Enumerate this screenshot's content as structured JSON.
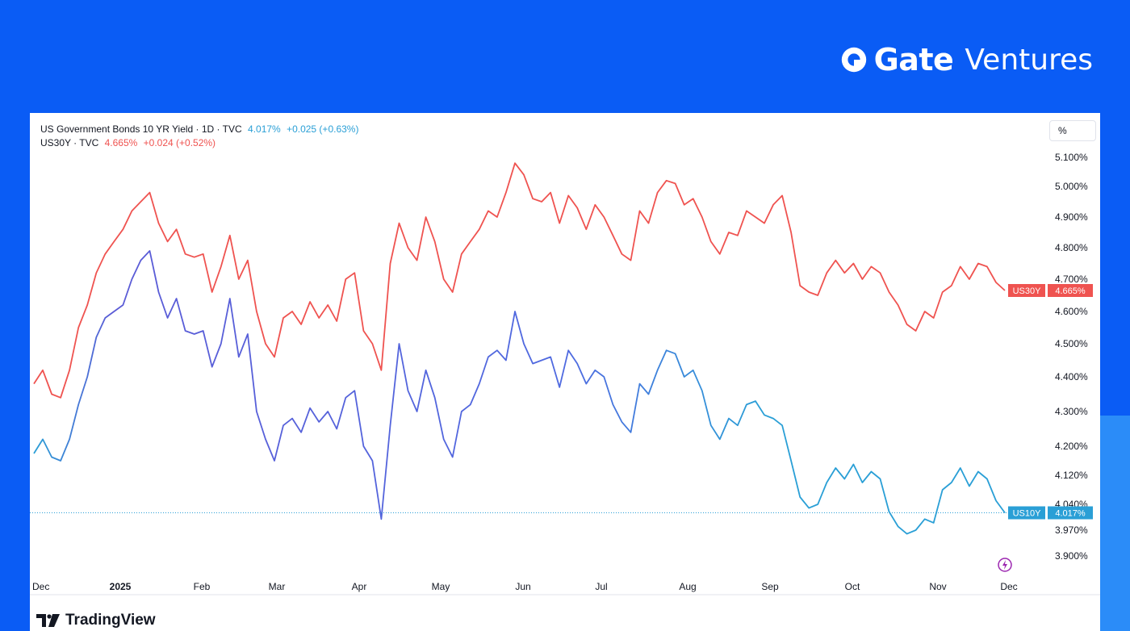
{
  "brand": {
    "name": "Gate",
    "sub": "Ventures",
    "logo_icon": "gate-logo-icon"
  },
  "legend": {
    "us10y_title": "US Government Bonds 10 YR Yield · 1D · TVC",
    "us10y_value": "4.017%",
    "us10y_change": "+0.025 (+0.63%)",
    "us30y_title": "US30Y · TVC",
    "us30y_value": "4.665%",
    "us30y_change": "+0.024 (+0.52%)"
  },
  "scale_button": "%",
  "footer": {
    "logo_text": "TradingView",
    "logo_icon": "tradingview-logo-icon"
  },
  "chart_data": {
    "type": "line",
    "title": "US Government Bonds 10 YR Yield · 1D · TVC",
    "x_ticks": [
      "Dec",
      "2025",
      "Feb",
      "Mar",
      "Apr",
      "May",
      "Jun",
      "Jul",
      "Aug",
      "Sep",
      "Oct",
      "Nov",
      "Dec"
    ],
    "y_ticks": [
      "5.100%",
      "5.000%",
      "4.900%",
      "4.800%",
      "4.700%",
      "4.600%",
      "4.500%",
      "4.400%",
      "4.300%",
      "4.200%",
      "4.120%",
      "4.040%",
      "3.970%",
      "3.900%"
    ],
    "y_tick_values": [
      5.1,
      5.0,
      4.9,
      4.8,
      4.7,
      4.6,
      4.5,
      4.4,
      4.3,
      4.2,
      4.12,
      4.04,
      3.97,
      3.9
    ],
    "scale": "percent, non-linear",
    "colors": {
      "us10y": "#2a9fd6",
      "us30y": "#ef5350",
      "us10y_line": "#5b5bd6"
    },
    "series": [
      {
        "name": "US30Y",
        "label": "US30Y",
        "last_label": "4.665%",
        "points": [
          [
            "Dec",
            4.38
          ],
          [
            "Dec",
            4.42
          ],
          [
            "Dec",
            4.35
          ],
          [
            "Dec",
            4.34
          ],
          [
            "Dec",
            4.42
          ],
          [
            "2025",
            4.55
          ],
          [
            "2025",
            4.62
          ],
          [
            "2025",
            4.72
          ],
          [
            "2025",
            4.78
          ],
          [
            "2025",
            4.82
          ],
          [
            "2025",
            4.86
          ],
          [
            "2025",
            4.92
          ],
          [
            "2025",
            4.95
          ],
          [
            "2025",
            4.98
          ],
          [
            "2025",
            4.88
          ],
          [
            "Feb",
            4.82
          ],
          [
            "Feb",
            4.86
          ],
          [
            "Feb",
            4.78
          ],
          [
            "Feb",
            4.77
          ],
          [
            "Feb",
            4.78
          ],
          [
            "Feb",
            4.66
          ],
          [
            "Feb",
            4.74
          ],
          [
            "Feb",
            4.84
          ],
          [
            "Feb",
            4.7
          ],
          [
            "Feb",
            4.76
          ],
          [
            "Mar",
            4.6
          ],
          [
            "Mar",
            4.5
          ],
          [
            "Mar",
            4.46
          ],
          [
            "Mar",
            4.58
          ],
          [
            "Mar",
            4.6
          ],
          [
            "Mar",
            4.56
          ],
          [
            "Mar",
            4.63
          ],
          [
            "Mar",
            4.58
          ],
          [
            "Mar",
            4.62
          ],
          [
            "Mar",
            4.57
          ],
          [
            "Apr",
            4.7
          ],
          [
            "Apr",
            4.72
          ],
          [
            "Apr",
            4.54
          ],
          [
            "Apr",
            4.5
          ],
          [
            "Apr",
            4.42
          ],
          [
            "Apr",
            4.75
          ],
          [
            "Apr",
            4.88
          ],
          [
            "Apr",
            4.8
          ],
          [
            "Apr",
            4.76
          ],
          [
            "Apr",
            4.9
          ],
          [
            "May",
            4.82
          ],
          [
            "May",
            4.7
          ],
          [
            "May",
            4.66
          ],
          [
            "May",
            4.78
          ],
          [
            "May",
            4.82
          ],
          [
            "May",
            4.86
          ],
          [
            "May",
            4.92
          ],
          [
            "May",
            4.9
          ],
          [
            "May",
            4.98
          ],
          [
            "May",
            5.08
          ],
          [
            "Jun",
            5.04
          ],
          [
            "Jun",
            4.96
          ],
          [
            "Jun",
            4.95
          ],
          [
            "Jun",
            4.98
          ],
          [
            "Jun",
            4.88
          ],
          [
            "Jun",
            4.97
          ],
          [
            "Jun",
            4.93
          ],
          [
            "Jun",
            4.86
          ],
          [
            "Jun",
            4.94
          ],
          [
            "Jun",
            4.9
          ],
          [
            "Jul",
            4.84
          ],
          [
            "Jul",
            4.78
          ],
          [
            "Jul",
            4.76
          ],
          [
            "Jul",
            4.92
          ],
          [
            "Jul",
            4.88
          ],
          [
            "Jul",
            4.98
          ],
          [
            "Jul",
            5.02
          ],
          [
            "Jul",
            5.01
          ],
          [
            "Jul",
            4.94
          ],
          [
            "Jul",
            4.96
          ],
          [
            "Aug",
            4.9
          ],
          [
            "Aug",
            4.82
          ],
          [
            "Aug",
            4.78
          ],
          [
            "Aug",
            4.85
          ],
          [
            "Aug",
            4.84
          ],
          [
            "Aug",
            4.92
          ],
          [
            "Aug",
            4.9
          ],
          [
            "Aug",
            4.88
          ],
          [
            "Aug",
            4.94
          ],
          [
            "Aug",
            4.97
          ],
          [
            "Sep",
            4.85
          ],
          [
            "Sep",
            4.68
          ],
          [
            "Sep",
            4.66
          ],
          [
            "Sep",
            4.65
          ],
          [
            "Sep",
            4.72
          ],
          [
            "Sep",
            4.76
          ],
          [
            "Sep",
            4.72
          ],
          [
            "Sep",
            4.75
          ],
          [
            "Oct",
            4.7
          ],
          [
            "Oct",
            4.74
          ],
          [
            "Oct",
            4.72
          ],
          [
            "Oct",
            4.66
          ],
          [
            "Oct",
            4.62
          ],
          [
            "Oct",
            4.56
          ],
          [
            "Oct",
            4.54
          ],
          [
            "Oct",
            4.6
          ],
          [
            "Oct",
            4.58
          ],
          [
            "Nov",
            4.66
          ],
          [
            "Nov",
            4.68
          ],
          [
            "Nov",
            4.74
          ],
          [
            "Nov",
            4.7
          ],
          [
            "Nov",
            4.75
          ],
          [
            "Nov",
            4.74
          ],
          [
            "Nov",
            4.69
          ],
          [
            "Dec",
            4.665
          ]
        ]
      },
      {
        "name": "US10Y",
        "label": "US10Y",
        "last_label": "4.017%",
        "points": [
          [
            "Dec",
            4.18
          ],
          [
            "Dec",
            4.22
          ],
          [
            "Dec",
            4.17
          ],
          [
            "Dec",
            4.16
          ],
          [
            "Dec",
            4.22
          ],
          [
            "2025",
            4.32
          ],
          [
            "2025",
            4.4
          ],
          [
            "2025",
            4.52
          ],
          [
            "2025",
            4.58
          ],
          [
            "2025",
            4.6
          ],
          [
            "2025",
            4.62
          ],
          [
            "2025",
            4.7
          ],
          [
            "2025",
            4.76
          ],
          [
            "2025",
            4.79
          ],
          [
            "2025",
            4.66
          ],
          [
            "Feb",
            4.58
          ],
          [
            "Feb",
            4.64
          ],
          [
            "Feb",
            4.54
          ],
          [
            "Feb",
            4.53
          ],
          [
            "Feb",
            4.54
          ],
          [
            "Feb",
            4.43
          ],
          [
            "Feb",
            4.5
          ],
          [
            "Feb",
            4.64
          ],
          [
            "Feb",
            4.46
          ],
          [
            "Feb",
            4.53
          ],
          [
            "Mar",
            4.3
          ],
          [
            "Mar",
            4.22
          ],
          [
            "Mar",
            4.16
          ],
          [
            "Mar",
            4.26
          ],
          [
            "Mar",
            4.28
          ],
          [
            "Mar",
            4.24
          ],
          [
            "Mar",
            4.31
          ],
          [
            "Mar",
            4.27
          ],
          [
            "Mar",
            4.3
          ],
          [
            "Mar",
            4.25
          ],
          [
            "Apr",
            4.34
          ],
          [
            "Apr",
            4.36
          ],
          [
            "Apr",
            4.2
          ],
          [
            "Apr",
            4.16
          ],
          [
            "Apr",
            4.0
          ],
          [
            "Apr",
            4.26
          ],
          [
            "Apr",
            4.5
          ],
          [
            "Apr",
            4.36
          ],
          [
            "Apr",
            4.3
          ],
          [
            "Apr",
            4.42
          ],
          [
            "May",
            4.34
          ],
          [
            "May",
            4.22
          ],
          [
            "May",
            4.17
          ],
          [
            "May",
            4.3
          ],
          [
            "May",
            4.32
          ],
          [
            "May",
            4.38
          ],
          [
            "May",
            4.46
          ],
          [
            "May",
            4.48
          ],
          [
            "May",
            4.45
          ],
          [
            "May",
            4.6
          ],
          [
            "Jun",
            4.5
          ],
          [
            "Jun",
            4.44
          ],
          [
            "Jun",
            4.45
          ],
          [
            "Jun",
            4.46
          ],
          [
            "Jun",
            4.37
          ],
          [
            "Jun",
            4.48
          ],
          [
            "Jun",
            4.44
          ],
          [
            "Jun",
            4.38
          ],
          [
            "Jun",
            4.42
          ],
          [
            "Jun",
            4.4
          ],
          [
            "Jul",
            4.32
          ],
          [
            "Jul",
            4.27
          ],
          [
            "Jul",
            4.24
          ],
          [
            "Jul",
            4.38
          ],
          [
            "Jul",
            4.35
          ],
          [
            "Jul",
            4.42
          ],
          [
            "Jul",
            4.48
          ],
          [
            "Jul",
            4.47
          ],
          [
            "Jul",
            4.4
          ],
          [
            "Jul",
            4.42
          ],
          [
            "Aug",
            4.36
          ],
          [
            "Aug",
            4.26
          ],
          [
            "Aug",
            4.22
          ],
          [
            "Aug",
            4.28
          ],
          [
            "Aug",
            4.26
          ],
          [
            "Aug",
            4.32
          ],
          [
            "Aug",
            4.33
          ],
          [
            "Aug",
            4.29
          ],
          [
            "Aug",
            4.28
          ],
          [
            "Aug",
            4.26
          ],
          [
            "Sep",
            4.16
          ],
          [
            "Sep",
            4.06
          ],
          [
            "Sep",
            4.03
          ],
          [
            "Sep",
            4.04
          ],
          [
            "Sep",
            4.1
          ],
          [
            "Sep",
            4.14
          ],
          [
            "Sep",
            4.11
          ],
          [
            "Sep",
            4.15
          ],
          [
            "Oct",
            4.1
          ],
          [
            "Oct",
            4.13
          ],
          [
            "Oct",
            4.11
          ],
          [
            "Oct",
            4.02
          ],
          [
            "Oct",
            3.98
          ],
          [
            "Oct",
            3.96
          ],
          [
            "Oct",
            3.97
          ],
          [
            "Oct",
            4.0
          ],
          [
            "Oct",
            3.99
          ],
          [
            "Nov",
            4.08
          ],
          [
            "Nov",
            4.1
          ],
          [
            "Nov",
            4.14
          ],
          [
            "Nov",
            4.09
          ],
          [
            "Nov",
            4.13
          ],
          [
            "Nov",
            4.11
          ],
          [
            "Nov",
            4.05
          ],
          [
            "Dec",
            4.017
          ]
        ]
      }
    ]
  }
}
